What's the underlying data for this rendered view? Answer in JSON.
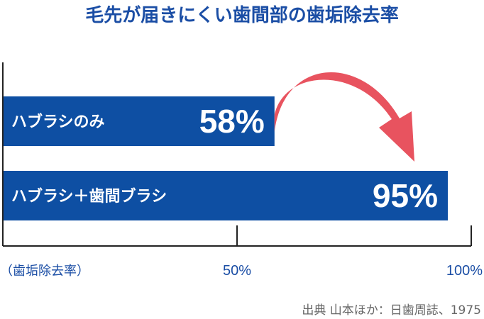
{
  "chart_data": {
    "type": "bar",
    "orientation": "horizontal",
    "title": "毛先が届きにくい歯間部の歯垢除去率",
    "categories": [
      "ハブラシのみ",
      "ハブラシ＋歯間ブラシ"
    ],
    "values": [
      58,
      95
    ],
    "value_labels": [
      "58%",
      "95%"
    ],
    "xlabel": "（歯垢除去率）",
    "xlim": [
      0,
      100
    ],
    "xticks": [
      0,
      50,
      100
    ],
    "xtick_labels": [
      "",
      "50%",
      "100%"
    ],
    "grid": false,
    "legend": "none",
    "annotation": "arrow from the end of the ハブラシのみ bar to the ハブラシ＋歯間ブラシ bar",
    "source": "出典 山本ほか：日歯周誌、1975"
  },
  "colors": {
    "title": "#1b4ea5",
    "bar": "#0e4fa3",
    "bar_text": "#ffffff",
    "arrow": "#e8535f",
    "axis": "#222222",
    "tick_text": "#1b4ea5",
    "source_text": "#666666"
  }
}
